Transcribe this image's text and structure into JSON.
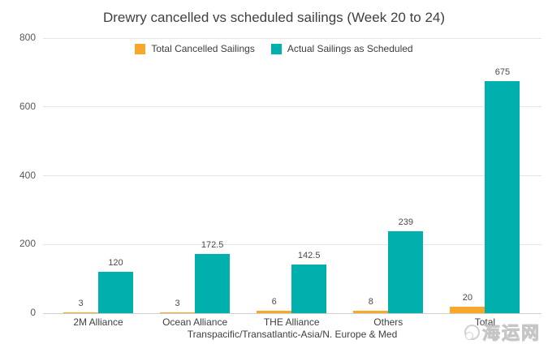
{
  "chart_data": {
    "type": "bar",
    "title": "Drewry cancelled vs scheduled sailings (Week 20 to 24)",
    "categories": [
      "2M Alliance",
      "Ocean Alliance",
      "THE Alliance",
      "Others",
      "Total"
    ],
    "series": [
      {
        "name": "Total Cancelled Sailings",
        "color": "#F7A82B",
        "values": [
          3,
          3,
          6,
          8,
          20
        ]
      },
      {
        "name": "Actual Sailings as Scheduled",
        "color": "#00B0AC",
        "values": [
          120,
          172.5,
          142.5,
          239,
          675
        ]
      }
    ],
    "xlabel": "Transpacific/Transatlantic-Asia/N. Europe & Med",
    "ylabel": "",
    "ylim": [
      0,
      800
    ],
    "yticks": [
      0,
      200,
      400,
      600,
      800
    ],
    "grid": true,
    "legend_position": "top",
    "data_labels": true
  },
  "watermark": {
    "text": "海运网",
    "icon": "globe-icon"
  }
}
